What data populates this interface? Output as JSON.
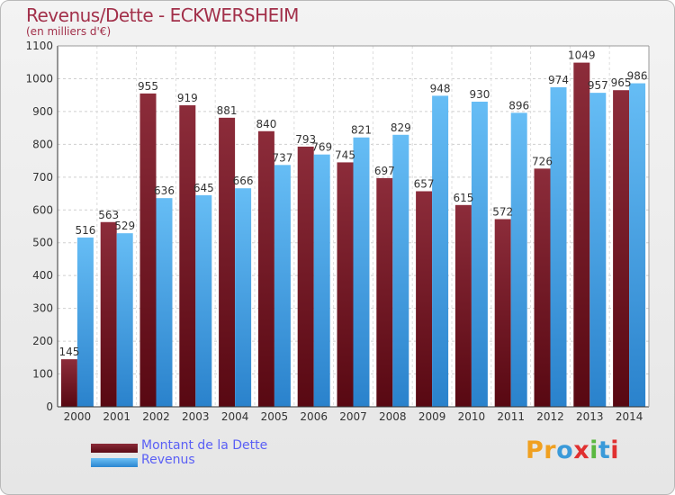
{
  "title": "Revenus/Dette - ECKWERSHEIM",
  "subtitle": "(en milliers d'€)",
  "legend": [
    {
      "label": "Montant de la Dette",
      "color": "#6b1020"
    },
    {
      "label": "Revenus",
      "color": "#3f9ee6"
    }
  ],
  "logo": {
    "text": "Proxiti",
    "colors": [
      "#f0a020",
      "#f0a020",
      "#3a9ad9",
      "#e03030",
      "#5ab840",
      "#3a9ad9",
      "#e03030"
    ]
  },
  "chart_data": {
    "type": "bar",
    "title": "Revenus/Dette - ECKWERSHEIM",
    "subtitle": "(en milliers d'€)",
    "xlabel": "",
    "ylabel": "",
    "categories": [
      "2000",
      "2001",
      "2002",
      "2003",
      "2004",
      "2005",
      "2006",
      "2007",
      "2008",
      "2009",
      "2010",
      "2011",
      "2012",
      "2013",
      "2014"
    ],
    "series": [
      {
        "name": "Montant de la Dette",
        "color": "#7a1d2b",
        "values": [
          145,
          563,
          955,
          919,
          881,
          840,
          793,
          745,
          697,
          657,
          615,
          572,
          726,
          1049,
          965
        ]
      },
      {
        "name": "Revenus",
        "color": "#3f9ee6",
        "values": [
          516,
          529,
          636,
          645,
          666,
          737,
          769,
          821,
          829,
          948,
          930,
          896,
          974,
          957,
          986
        ]
      }
    ],
    "yticks": [
      0,
      100,
      200,
      300,
      400,
      500,
      600,
      700,
      800,
      900,
      1000,
      1100
    ],
    "ylim": [
      0,
      1100
    ],
    "grid": true,
    "legend_position": "bottom-left"
  }
}
